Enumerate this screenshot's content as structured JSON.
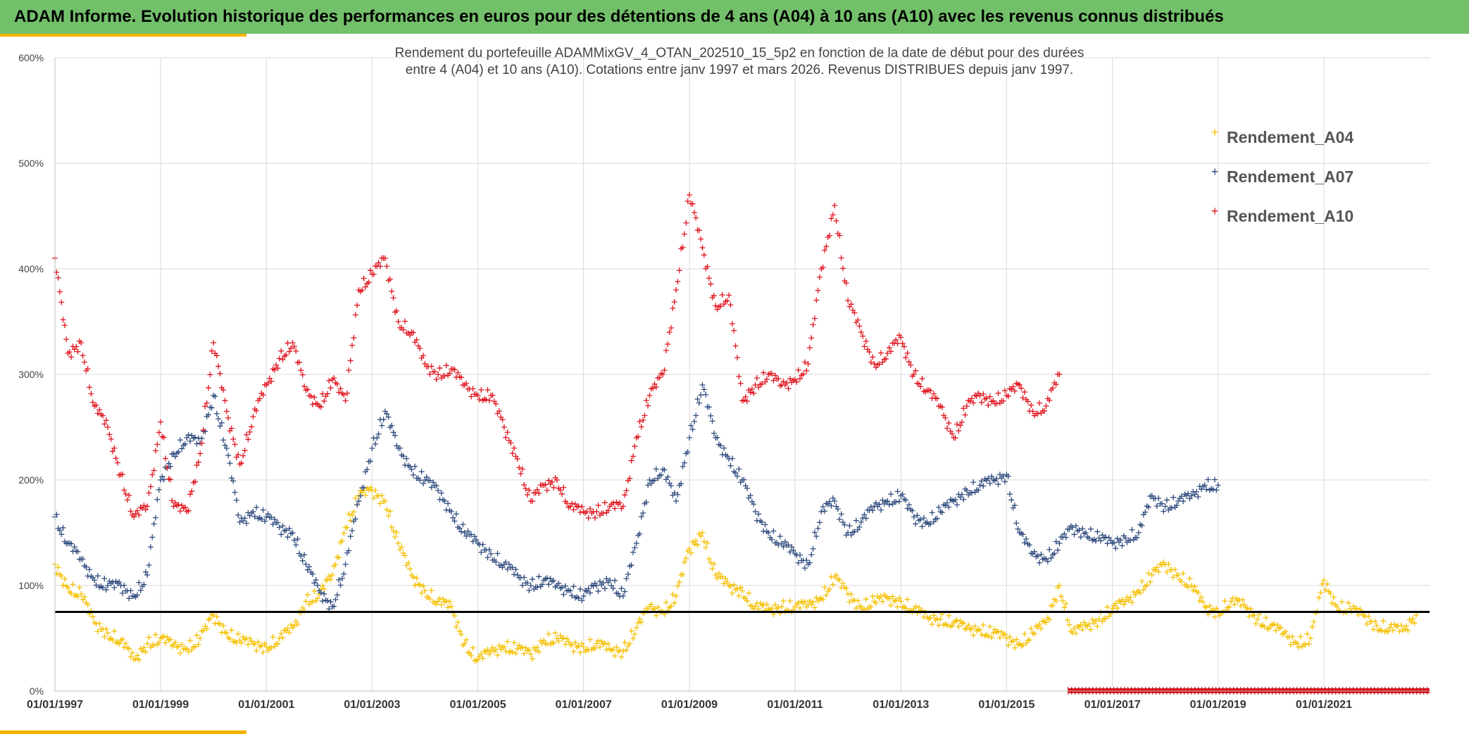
{
  "header": {
    "title": "ADAM Informe. Evolution historique des performances en euros pour des détentions de 4 ans (A04) à 10 ans (A10) avec les revenus connus distribués"
  },
  "colors": {
    "header_bg": "#73c06b",
    "accent": "#f4b400",
    "A04": "#f5c000",
    "A07": "#2e4a7d",
    "A10": "#e0141e",
    "reference_line": "#000000",
    "grid": "#d9d9d9"
  },
  "chart_data": {
    "type": "scatter",
    "title_line1": "Rendement du portefeuille ADAMMixGV_4_OTAN_202510_15_5p2  en fonction de la date de début pour des durées",
    "title_line2": "entre 4 (A04) et 10 ans (A10). Cotations entre janv 1997 et mars 2026. Revenus DISTRIBUES depuis janv 1997.",
    "xlabel": "",
    "ylabel": "",
    "x_range": [
      "1997-01-01",
      "2023-01-01"
    ],
    "y_range": [
      0,
      600
    ],
    "y_unit": "%",
    "y_ticks": [
      "0%",
      "100%",
      "200%",
      "300%",
      "400%",
      "500%",
      "600%"
    ],
    "x_ticks": [
      "01/01/1997",
      "01/01/1999",
      "01/01/2001",
      "01/01/2003",
      "01/01/2005",
      "01/01/2007",
      "01/01/2009",
      "01/01/2011",
      "01/01/2013",
      "01/01/2015",
      "01/01/2017",
      "01/01/2019",
      "01/01/2021"
    ],
    "grid": true,
    "legend_position": "top-right",
    "reference_line_y": 75,
    "series": [
      {
        "name": "Rendement_A04",
        "x": [
          "1997-01-01",
          "1997-04-01",
          "1997-07-01",
          "1997-10-01",
          "1998-01-01",
          "1998-04-01",
          "1998-07-01",
          "1998-10-01",
          "1999-01-01",
          "1999-04-01",
          "1999-07-01",
          "1999-10-01",
          "2000-01-01",
          "2000-04-01",
          "2000-07-01",
          "2000-10-01",
          "2001-01-01",
          "2001-04-01",
          "2001-07-01",
          "2001-10-01",
          "2002-01-01",
          "2002-04-01",
          "2002-07-01",
          "2002-10-01",
          "2003-01-01",
          "2003-04-01",
          "2003-07-01",
          "2003-10-01",
          "2004-01-01",
          "2004-04-01",
          "2004-07-01",
          "2004-10-01",
          "2005-01-01",
          "2005-04-01",
          "2005-07-01",
          "2005-10-01",
          "2006-01-01",
          "2006-04-01",
          "2006-07-01",
          "2006-10-01",
          "2007-01-01",
          "2007-04-01",
          "2007-07-01",
          "2007-10-01",
          "2008-01-01",
          "2008-04-01",
          "2008-07-01",
          "2008-10-01",
          "2009-01-01",
          "2009-04-01",
          "2009-07-01",
          "2009-10-01",
          "2010-01-01",
          "2010-04-01",
          "2010-07-01",
          "2010-10-01",
          "2011-01-01",
          "2011-04-01",
          "2011-07-01",
          "2011-10-01",
          "2012-01-01",
          "2012-04-01",
          "2012-07-01",
          "2012-10-01",
          "2013-01-01",
          "2013-04-01",
          "2013-07-01",
          "2013-10-01",
          "2014-01-01",
          "2014-04-01",
          "2014-07-01",
          "2014-10-01",
          "2015-01-01",
          "2015-04-01",
          "2015-07-01",
          "2015-10-01",
          "2016-01-01",
          "2016-04-01",
          "2016-07-01",
          "2016-10-01",
          "2017-01-01",
          "2017-04-01",
          "2017-07-01",
          "2017-10-01",
          "2018-01-01",
          "2018-04-01",
          "2018-07-01",
          "2018-10-01",
          "2019-01-01",
          "2019-04-01",
          "2019-07-01",
          "2019-10-01",
          "2020-01-01",
          "2020-04-01",
          "2020-07-01",
          "2020-10-01",
          "2021-01-01",
          "2021-04-01",
          "2021-07-01",
          "2021-10-01",
          "2022-01-01",
          "2022-04-01",
          "2022-07-01",
          "2022-10-01"
        ],
        "y": [
          120,
          98,
          92,
          65,
          55,
          48,
          30,
          45,
          50,
          44,
          40,
          50,
          72,
          55,
          48,
          45,
          42,
          50,
          60,
          85,
          92,
          110,
          155,
          185,
          190,
          180,
          140,
          110,
          95,
          85,
          80,
          45,
          30,
          38,
          42,
          40,
          35,
          48,
          50,
          44,
          42,
          45,
          40,
          38,
          60,
          80,
          75,
          90,
          135,
          150,
          110,
          100,
          95,
          80,
          78,
          80,
          80,
          82,
          88,
          108,
          92,
          80,
          85,
          88,
          85,
          78,
          70,
          68,
          65,
          60,
          58,
          55,
          50,
          45,
          55,
          65,
          100,
          55,
          62,
          68,
          78,
          85,
          95,
          110,
          120,
          110,
          100,
          80,
          75,
          85,
          82,
          68,
          62,
          55,
          45,
          50,
          105,
          80,
          78,
          72,
          62,
          60,
          58,
          72
        ]
      },
      {
        "name": "Rendement_A07",
        "x": [
          "1997-01-01",
          "1997-04-01",
          "1997-07-01",
          "1997-10-01",
          "1998-01-01",
          "1998-04-01",
          "1998-07-01",
          "1998-10-01",
          "1999-01-01",
          "1999-04-01",
          "1999-07-01",
          "1999-10-01",
          "2000-01-01",
          "2000-04-01",
          "2000-07-01",
          "2000-10-01",
          "2001-01-01",
          "2001-04-01",
          "2001-07-01",
          "2001-10-01",
          "2002-01-01",
          "2002-04-01",
          "2002-07-01",
          "2002-10-01",
          "2003-01-01",
          "2003-04-01",
          "2003-07-01",
          "2003-10-01",
          "2004-01-01",
          "2004-04-01",
          "2004-07-01",
          "2004-10-01",
          "2005-01-01",
          "2005-04-01",
          "2005-07-01",
          "2005-10-01",
          "2006-01-01",
          "2006-04-01",
          "2006-07-01",
          "2006-10-01",
          "2007-01-01",
          "2007-04-01",
          "2007-07-01",
          "2007-10-01",
          "2008-01-01",
          "2008-04-01",
          "2008-07-01",
          "2008-10-01",
          "2009-01-01",
          "2009-04-01",
          "2009-07-01",
          "2009-10-01",
          "2010-01-01",
          "2010-04-01",
          "2010-07-01",
          "2010-10-01",
          "2011-01-01",
          "2011-04-01",
          "2011-07-01",
          "2011-10-01",
          "2012-01-01",
          "2012-04-01",
          "2012-07-01",
          "2012-10-01",
          "2013-01-01",
          "2013-04-01",
          "2013-07-01",
          "2013-10-01",
          "2014-01-01",
          "2014-04-01",
          "2014-07-01",
          "2014-10-01",
          "2015-01-01",
          "2015-04-01",
          "2015-07-01",
          "2015-10-01",
          "2016-01-01",
          "2016-04-01",
          "2016-07-01",
          "2016-10-01",
          "2017-01-01",
          "2017-04-01",
          "2017-07-01",
          "2017-10-01",
          "2018-01-01",
          "2018-04-01",
          "2018-07-01",
          "2018-10-01",
          "2019-01-01"
        ],
        "y": [
          165,
          140,
          125,
          105,
          100,
          100,
          90,
          110,
          200,
          225,
          240,
          235,
          280,
          230,
          160,
          170,
          165,
          155,
          150,
          120,
          95,
          80,
          120,
          180,
          230,
          265,
          230,
          210,
          200,
          190,
          170,
          150,
          140,
          130,
          120,
          110,
          100,
          105,
          100,
          95,
          90,
          100,
          105,
          90,
          140,
          200,
          210,
          180,
          240,
          290,
          240,
          220,
          200,
          170,
          150,
          140,
          130,
          120,
          170,
          180,
          150,
          160,
          175,
          180,
          185,
          165,
          160,
          170,
          180,
          190,
          195,
          200,
          205,
          150,
          130,
          125,
          140,
          155,
          150,
          145,
          140,
          145,
          150,
          185,
          175,
          180,
          185,
          195,
          195
        ]
      },
      {
        "name": "Rendement_A10",
        "x": [
          "1997-01-01",
          "1997-04-01",
          "1997-07-01",
          "1997-10-01",
          "1998-01-01",
          "1998-04-01",
          "1998-07-01",
          "1998-10-01",
          "1999-01-01",
          "1999-04-01",
          "1999-07-01",
          "1999-10-01",
          "2000-01-01",
          "2000-04-01",
          "2000-07-01",
          "2000-10-01",
          "2001-01-01",
          "2001-04-01",
          "2001-07-01",
          "2001-10-01",
          "2002-01-01",
          "2002-04-01",
          "2002-07-01",
          "2002-10-01",
          "2003-01-01",
          "2003-04-01",
          "2003-07-01",
          "2003-10-01",
          "2004-01-01",
          "2004-04-01",
          "2004-07-01",
          "2004-10-01",
          "2005-01-01",
          "2005-04-01",
          "2005-07-01",
          "2005-10-01",
          "2006-01-01",
          "2006-04-01",
          "2006-07-01",
          "2006-10-01",
          "2007-01-01",
          "2007-04-01",
          "2007-07-01",
          "2007-10-01",
          "2008-01-01",
          "2008-04-01",
          "2008-07-01",
          "2008-10-01",
          "2009-01-01",
          "2009-04-01",
          "2009-07-01",
          "2009-10-01",
          "2010-01-01",
          "2010-04-01",
          "2010-07-01",
          "2010-10-01",
          "2011-01-01",
          "2011-04-01",
          "2011-07-01",
          "2011-10-01",
          "2012-01-01",
          "2012-04-01",
          "2012-07-01",
          "2012-10-01",
          "2013-01-01",
          "2013-04-01",
          "2013-07-01",
          "2013-10-01",
          "2014-01-01",
          "2014-04-01",
          "2014-07-01",
          "2014-10-01",
          "2015-01-01",
          "2015-04-01",
          "2015-07-01",
          "2015-10-01",
          "2016-01-01"
        ],
        "y": [
          410,
          320,
          330,
          270,
          250,
          205,
          165,
          175,
          255,
          175,
          170,
          225,
          330,
          265,
          215,
          260,
          290,
          315,
          330,
          285,
          270,
          295,
          275,
          380,
          395,
          410,
          350,
          340,
          310,
          300,
          305,
          290,
          280,
          280,
          250,
          220,
          180,
          195,
          200,
          175,
          170,
          170,
          175,
          175,
          240,
          280,
          300,
          380,
          470,
          420,
          365,
          375,
          275,
          290,
          300,
          290,
          295,
          310,
          400,
          460,
          370,
          340,
          310,
          320,
          335,
          300,
          285,
          270,
          240,
          270,
          280,
          275,
          280,
          290,
          265,
          270,
          300
        ]
      }
    ],
    "hatched_band": {
      "from": "2016-03-01",
      "to": "2023-01-01",
      "y": 0
    }
  }
}
